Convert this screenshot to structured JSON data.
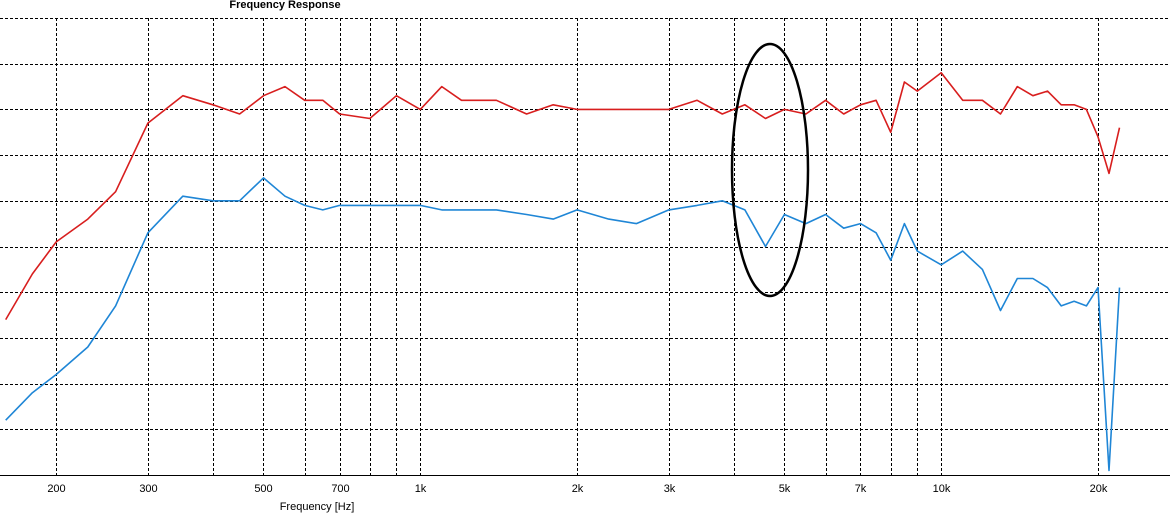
{
  "chart_data": {
    "type": "line",
    "title": "Frequency Response",
    "x_label": "Frequency [Hz]",
    "log_x": true,
    "grid": true,
    "xlim": [
      156,
      27500
    ],
    "ylim": [
      0,
      100
    ],
    "ygrid": [
      0,
      10,
      20,
      30,
      40,
      50,
      60,
      70,
      80,
      90,
      100
    ],
    "xticks": [
      200,
      300,
      500,
      700,
      {
        "value": 1000,
        "label": "1k"
      },
      {
        "value": 2000,
        "label": "2k"
      },
      {
        "value": 3000,
        "label": "3k"
      },
      {
        "value": 5000,
        "label": "5k"
      },
      {
        "value": 7000,
        "label": "7k"
      },
      {
        "value": 10000,
        "label": "10k"
      },
      {
        "value": 20000,
        "label": "20k"
      }
    ],
    "xminor": [
      400,
      600,
      800,
      900,
      4000,
      6000,
      8000,
      9000
    ],
    "x": [
      160,
      180,
      200,
      230,
      260,
      300,
      350,
      400,
      450,
      500,
      550,
      600,
      650,
      700,
      800,
      900,
      1000,
      1100,
      1200,
      1400,
      1600,
      1800,
      2000,
      2300,
      2600,
      3000,
      3400,
      3800,
      4200,
      4600,
      5000,
      5500,
      6000,
      6500,
      7000,
      7500,
      8000,
      8500,
      9000,
      10000,
      11000,
      12000,
      13000,
      14000,
      15000,
      16000,
      17000,
      18000,
      19000,
      20000,
      21000,
      22000
    ],
    "series": [
      {
        "color": "#d81e1e",
        "values": [
          34,
          44,
          51,
          56,
          62,
          77,
          83,
          81,
          79,
          83,
          85,
          82,
          82,
          79,
          78,
          83,
          80,
          85,
          82,
          82,
          79,
          81,
          80,
          80,
          80,
          80,
          82,
          79,
          81,
          78,
          80,
          79,
          82,
          79,
          81,
          82,
          75,
          86,
          84,
          88,
          82,
          82,
          79,
          85,
          83,
          84,
          81,
          81,
          80,
          74,
          66,
          76
        ]
      },
      {
        "color": "#1f86d6",
        "values": [
          12,
          18,
          22,
          28,
          37,
          53,
          61,
          60,
          60,
          65,
          61,
          59,
          58,
          59,
          59,
          59,
          59,
          58,
          58,
          58,
          57,
          56,
          58,
          56,
          55,
          58,
          59,
          60,
          58,
          50,
          57,
          55,
          57,
          54,
          55,
          53,
          47,
          55,
          49,
          46,
          49,
          45,
          36,
          43,
          43,
          41,
          37,
          38,
          37,
          41,
          1,
          41
        ]
      }
    ]
  }
}
